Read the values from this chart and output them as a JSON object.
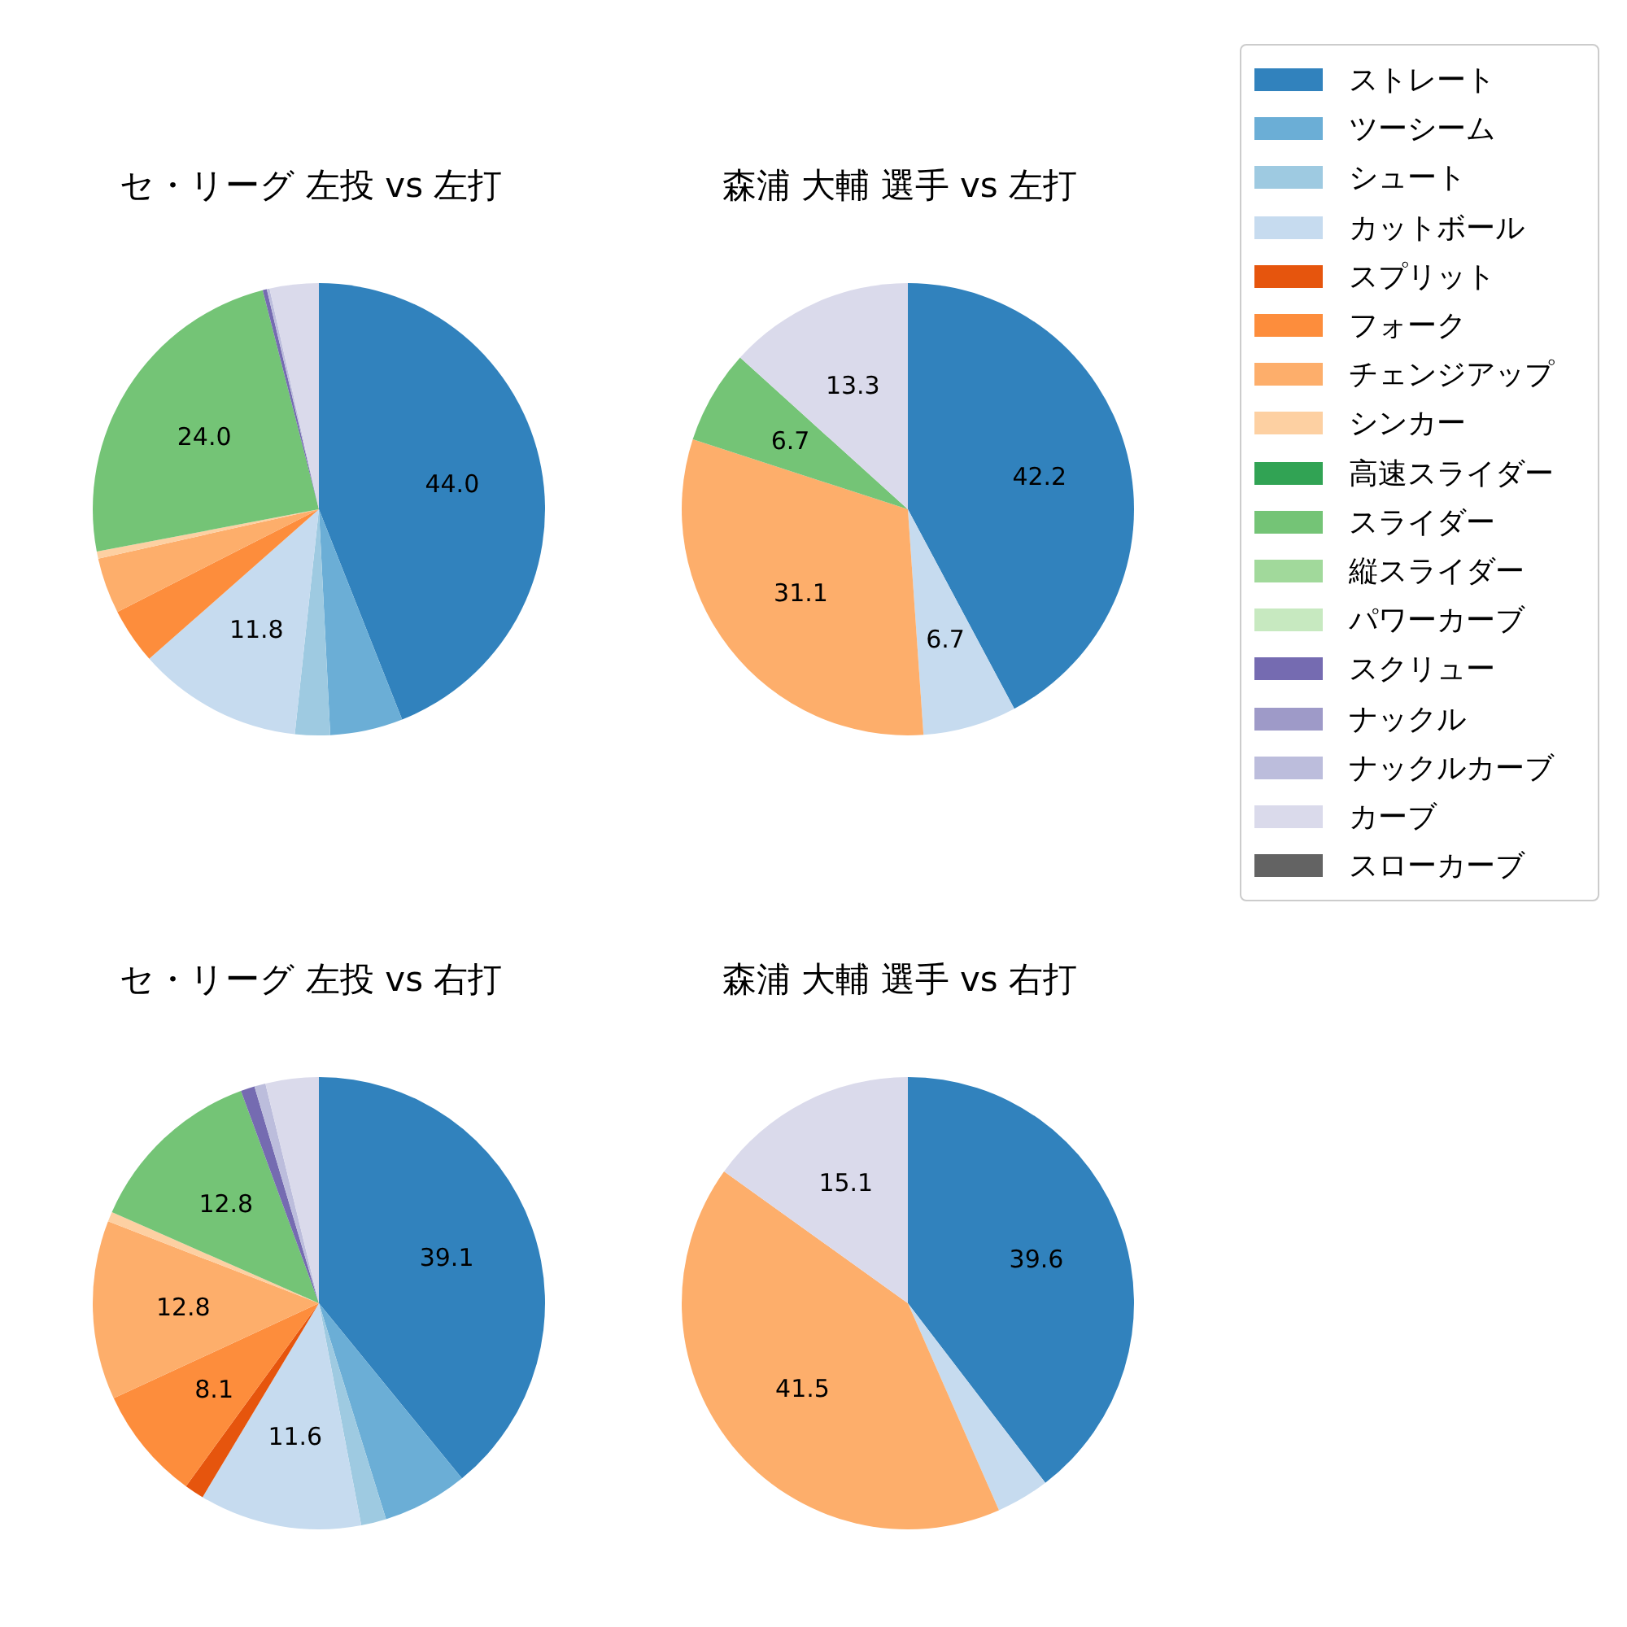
{
  "chart_data": [
    {
      "type": "pie",
      "title": "セ・リーグ 左投 vs 左打",
      "legend": "right",
      "categories": [
        "ストレート",
        "ツーシーム",
        "シュート",
        "カットボール",
        "スプリット",
        "フォーク",
        "チェンジアップ",
        "シンカー",
        "高速スライダー",
        "スライダー",
        "縦スライダー",
        "パワーカーブ",
        "スクリュー",
        "ナックル",
        "ナックルカーブ",
        "カーブ",
        "スローカーブ"
      ],
      "values": [
        44.0,
        5.2,
        2.5,
        11.8,
        null,
        4.0,
        4.0,
        0.5,
        null,
        24.0,
        null,
        null,
        0.3,
        null,
        0.2,
        3.5,
        null
      ],
      "value_labels": [
        "44.0",
        null,
        null,
        "11.8",
        null,
        null,
        null,
        null,
        null,
        "24.0",
        null,
        null,
        null,
        null,
        null,
        null,
        null
      ],
      "colors": [
        "#3182bd",
        "#6baed6",
        "#9ecae1",
        "#c6dbef",
        "#e6550d",
        "#fd8d3c",
        "#fdae6b",
        "#fdd0a2",
        "#31a354",
        "#74c476",
        "#a1d99b",
        "#c7e9c0",
        "#756bb1",
        "#9e9ac8",
        "#bcbddc",
        "#dadaeb",
        "#636363"
      ]
    },
    {
      "type": "pie",
      "title": "森浦 大輔 選手 vs 左打",
      "values": [
        42.2,
        6.7,
        31.1,
        6.7,
        13.3
      ],
      "data_labels": true,
      "colors": [
        "#3182bd",
        "#c6dbef",
        "#fdae6b",
        "#74c476",
        "#dadaeb"
      ]
    },
    {
      "type": "pie",
      "title": "セ・リーグ 左投 vs 右打",
      "values": [
        39.1,
        6.1,
        1.8,
        11.6,
        1.4,
        8.1,
        12.8,
        0.7,
        12.8,
        1.0,
        0.8,
        3.8
      ],
      "value_labels": [
        "39.1",
        null,
        null,
        "11.6",
        null,
        "8.1",
        "12.8",
        null,
        "12.8",
        null,
        null,
        null
      ],
      "colors": [
        "#3182bd",
        "#6baed6",
        "#9ecae1",
        "#c6dbef",
        "#e6550d",
        "#fd8d3c",
        "#fdae6b",
        "#fdd0a2",
        "#74c476",
        "#756bb1",
        "#bcbddc",
        "#dadaeb"
      ]
    },
    {
      "type": "pie",
      "title": "森浦 大輔 選手 vs 右打",
      "values": [
        39.6,
        3.8,
        41.5,
        15.1
      ],
      "value_labels": [
        "39.6",
        null,
        "41.5",
        "15.1"
      ],
      "colors": [
        "#3182bd",
        "#c6dbef",
        "#fdae6b",
        "#dadaeb"
      ]
    }
  ]
}
